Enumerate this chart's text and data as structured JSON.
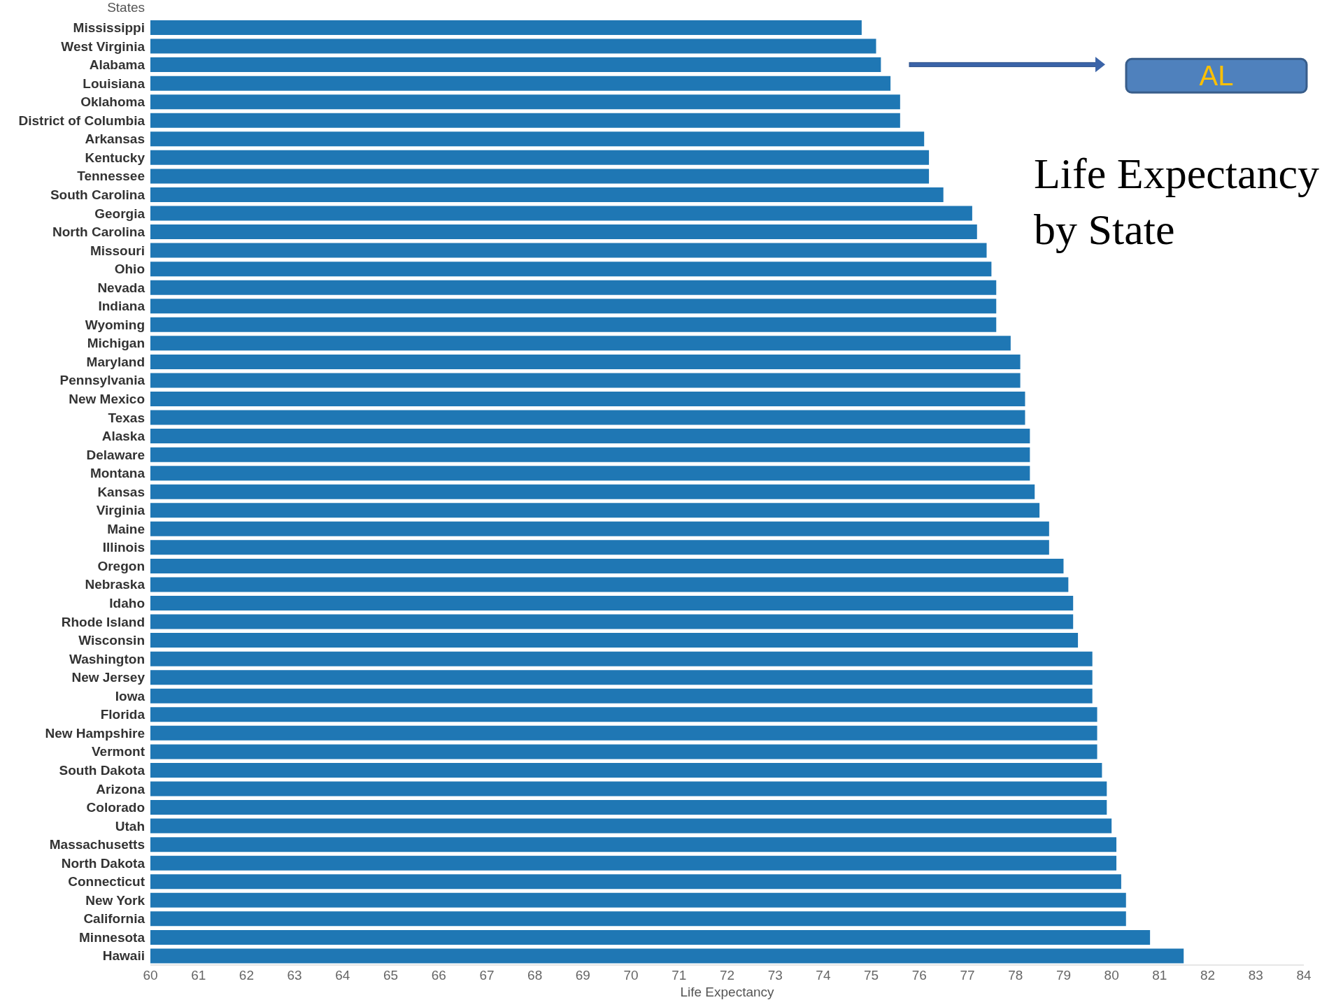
{
  "chart_data": {
    "type": "bar",
    "orientation": "horizontal",
    "title": "Life Expectancy by State",
    "xlabel": "Life Expectancy",
    "ylabel": "States",
    "categories": [
      "Mississippi",
      "West Virginia",
      "Alabama",
      "Louisiana",
      "Oklahoma",
      "District of Columbia",
      "Arkansas",
      "Kentucky",
      "Tennessee",
      "South Carolina",
      "Georgia",
      "North Carolina",
      "Missouri",
      "Ohio",
      "Nevada",
      "Indiana",
      "Wyoming",
      "Michigan",
      "Maryland",
      "Pennsylvania",
      "New Mexico",
      "Texas",
      "Alaska",
      "Delaware",
      "Montana",
      "Kansas",
      "Virginia",
      "Maine",
      "Illinois",
      "Oregon",
      "Nebraska",
      "Idaho",
      "Rhode Island",
      "Wisconsin",
      "Washington",
      "New Jersey",
      "Iowa",
      "Florida",
      "New Hampshire",
      "Vermont",
      "South Dakota",
      "Arizona",
      "Colorado",
      "Utah",
      "Massachusetts",
      "North Dakota",
      "Connecticut",
      "New York",
      "California",
      "Minnesota",
      "Hawaii"
    ],
    "values": [
      74.8,
      75.1,
      75.2,
      75.4,
      75.6,
      75.6,
      76.1,
      76.2,
      76.2,
      76.5,
      77.1,
      77.2,
      77.4,
      77.5,
      77.6,
      77.6,
      77.6,
      77.9,
      78.1,
      78.1,
      78.2,
      78.2,
      78.3,
      78.3,
      78.3,
      78.4,
      78.5,
      78.7,
      78.7,
      79.0,
      79.1,
      79.2,
      79.2,
      79.3,
      79.6,
      79.6,
      79.6,
      79.7,
      79.7,
      79.7,
      79.8,
      79.9,
      79.9,
      80.0,
      80.1,
      80.1,
      80.2,
      80.3,
      80.3,
      80.8,
      81.5
    ],
    "color": "#1f77b4",
    "xlim": [
      60,
      84
    ],
    "xticks": [
      60,
      61,
      62,
      63,
      64,
      65,
      66,
      67,
      68,
      69,
      70,
      71,
      72,
      73,
      74,
      75,
      76,
      77,
      78,
      79,
      80,
      81,
      82,
      83,
      84
    ],
    "grid": false,
    "legend": false,
    "annotations": [
      "AL"
    ]
  }
}
